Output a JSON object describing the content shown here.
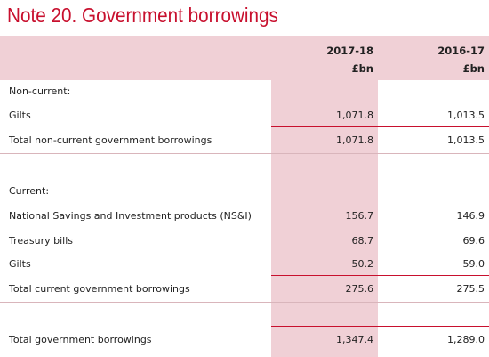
{
  "header": {
    "title": "Note 20. Government borrowings"
  },
  "table": {
    "columns": [
      {
        "label": "2017-18",
        "unit": "£bn"
      },
      {
        "label": "2016-17",
        "unit": "£bn"
      }
    ],
    "rows": [
      [
        "Non-current:"
      ],
      [
        "Gilts",
        "1,071.8",
        "1,013.5"
      ],
      [
        "Total non-current government borrowings",
        "1,071.8",
        "1,013.5"
      ],
      [
        "Current:"
      ],
      [
        "National Savings and Investment products (NS&I)",
        "156.7",
        "146.9"
      ],
      [
        "Treasury bills",
        "68.7",
        "69.6"
      ],
      [
        "Gilts",
        "50.2",
        "59.0"
      ],
      [
        "Total current government borrowings",
        "275.6",
        "275.5"
      ],
      [
        "Total government borrowings",
        "1,347.4",
        "1,289.0"
      ]
    ]
  }
}
